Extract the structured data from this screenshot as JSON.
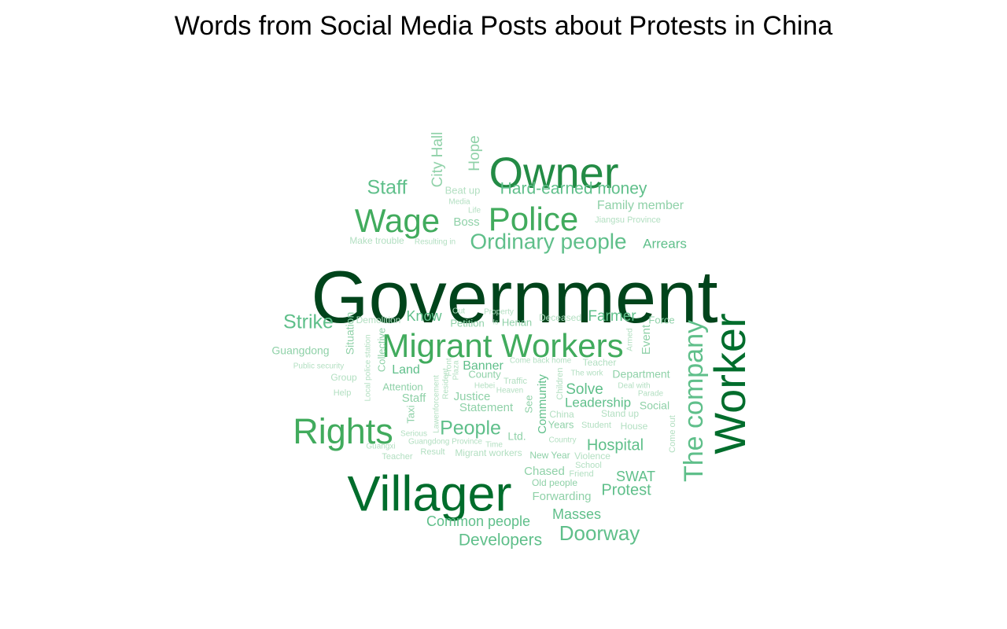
{
  "chart_data": {
    "type": "wordcloud",
    "title": "Words from Social Media Posts about Protests in China",
    "colors": {
      "darkest": "#00441b",
      "dark": "#006d2c",
      "mid_dark": "#238b45",
      "mid": "#41ab5d",
      "mid_light": "#5fbf8a",
      "light": "#8fd1a8",
      "lightest": "#b2dfc1"
    },
    "words": [
      {
        "text": "Government",
        "weight": 100,
        "color": "#00441b",
        "rotate": false
      },
      {
        "text": "Owner",
        "weight": 53,
        "color": "#238b45",
        "rotate": false
      },
      {
        "text": "Villager",
        "weight": 63,
        "color": "#006d2c",
        "rotate": false
      },
      {
        "text": "Worker",
        "weight": 52,
        "color": "#006d2c",
        "rotate": true
      },
      {
        "text": "Police",
        "weight": 42,
        "color": "#41ab5d",
        "rotate": false
      },
      {
        "text": "Migrant Workers",
        "weight": 40,
        "color": "#41ab5d",
        "rotate": false
      },
      {
        "text": "Rights",
        "weight": 45,
        "color": "#41ab5d",
        "rotate": false
      },
      {
        "text": "Wage",
        "weight": 40,
        "color": "#41ab5d",
        "rotate": false
      },
      {
        "text": "The company",
        "weight": 35,
        "color": "#5fbf8a",
        "rotate": true
      },
      {
        "text": "Ordinary people",
        "weight": 28,
        "color": "#5fbf8a",
        "rotate": false
      },
      {
        "text": "Hard-earned money",
        "weight": 22,
        "color": "#5fbf8a",
        "rotate": false
      },
      {
        "text": "Staff",
        "weight": 24,
        "color": "#5fbf8a",
        "rotate": false
      },
      {
        "text": "Doorway",
        "weight": 26,
        "color": "#5fbf8a",
        "rotate": false
      },
      {
        "text": "People",
        "weight": 24,
        "color": "#5fbf8a",
        "rotate": false
      },
      {
        "text": "Developers",
        "weight": 22,
        "color": "#5fbf8a",
        "rotate": false
      },
      {
        "text": "Strike",
        "weight": 24,
        "color": "#5fbf8a",
        "rotate": false
      },
      {
        "text": "Hospital",
        "weight": 20,
        "color": "#5fbf8a",
        "rotate": false
      },
      {
        "text": "Common people",
        "weight": 18,
        "color": "#5fbf8a",
        "rotate": false
      },
      {
        "text": "Protest",
        "weight": 20,
        "color": "#5fbf8a",
        "rotate": false
      },
      {
        "text": "Farmer",
        "weight": 19,
        "color": "#5fbf8a",
        "rotate": false
      },
      {
        "text": "Solve",
        "weight": 19,
        "color": "#5fbf8a",
        "rotate": false
      },
      {
        "text": "SWAT",
        "weight": 18,
        "color": "#5fbf8a",
        "rotate": false
      },
      {
        "text": "Masses",
        "weight": 18,
        "color": "#5fbf8a",
        "rotate": false
      },
      {
        "text": "Know",
        "weight": 18,
        "color": "#5fbf8a",
        "rotate": false
      },
      {
        "text": "Arrears",
        "weight": 17,
        "color": "#5fbf8a",
        "rotate": false
      },
      {
        "text": "Leadership",
        "weight": 17,
        "color": "#5fbf8a",
        "rotate": false
      },
      {
        "text": "Family member",
        "weight": 16,
        "color": "#8fd1a8",
        "rotate": false
      },
      {
        "text": "City Hall",
        "weight": 19,
        "color": "#8fd1a8",
        "rotate": true
      },
      {
        "text": "Hope",
        "weight": 19,
        "color": "#8fd1a8",
        "rotate": true
      },
      {
        "text": "Community",
        "weight": 15,
        "color": "#5fbf8a",
        "rotate": true
      },
      {
        "text": "Land",
        "weight": 16,
        "color": "#5fbf8a",
        "rotate": false
      },
      {
        "text": "Banner",
        "weight": 16,
        "color": "#5fbf8a",
        "rotate": false
      },
      {
        "text": "Statement",
        "weight": 15,
        "color": "#8fd1a8",
        "rotate": false
      },
      {
        "text": "Boss",
        "weight": 15,
        "color": "#8fd1a8",
        "rotate": false
      },
      {
        "text": "Staff",
        "weight": 15,
        "color": "#8fd1a8",
        "rotate": false
      },
      {
        "text": "Justice",
        "weight": 15,
        "color": "#8fd1a8",
        "rotate": false
      },
      {
        "text": "Guangdong",
        "weight": 14,
        "color": "#8fd1a8",
        "rotate": false
      },
      {
        "text": "Forwarding",
        "weight": 15,
        "color": "#8fd1a8",
        "rotate": false
      },
      {
        "text": "Chased",
        "weight": 15,
        "color": "#8fd1a8",
        "rotate": false
      },
      {
        "text": "Event",
        "weight": 15,
        "color": "#8fd1a8",
        "rotate": true
      },
      {
        "text": "Situation",
        "weight": 14,
        "color": "#8fd1a8",
        "rotate": true
      },
      {
        "text": "Social",
        "weight": 14,
        "color": "#8fd1a8",
        "rotate": false
      },
      {
        "text": "Department",
        "weight": 14,
        "color": "#8fd1a8",
        "rotate": false
      },
      {
        "text": "Ltd.",
        "weight": 14,
        "color": "#8fd1a8",
        "rotate": false
      },
      {
        "text": "Force",
        "weight": 13,
        "color": "#8fd1a8",
        "rotate": false
      },
      {
        "text": "Attention",
        "weight": 13,
        "color": "#8fd1a8",
        "rotate": false
      },
      {
        "text": "Years",
        "weight": 13,
        "color": "#8fd1a8",
        "rotate": false
      },
      {
        "text": "Taxi",
        "weight": 13,
        "color": "#8fd1a8",
        "rotate": true
      },
      {
        "text": "See",
        "weight": 13,
        "color": "#8fd1a8",
        "rotate": true
      },
      {
        "text": "Collective",
        "weight": 13,
        "color": "#8fd1a8",
        "rotate": true
      },
      {
        "text": "Petition",
        "weight": 13,
        "color": "#8fd1a8",
        "rotate": false
      },
      {
        "text": "County",
        "weight": 13,
        "color": "#8fd1a8",
        "rotate": false
      },
      {
        "text": "Henan",
        "weight": 13,
        "color": "#8fd1a8",
        "rotate": false
      },
      {
        "text": "New Year",
        "weight": 12,
        "color": "#8fd1a8",
        "rotate": false
      },
      {
        "text": "Old people",
        "weight": 12,
        "color": "#8fd1a8",
        "rotate": false
      },
      {
        "text": "Beat up",
        "weight": 13,
        "color": "#b2dfc1",
        "rotate": false
      },
      {
        "text": "Teacher",
        "weight": 12,
        "color": "#b2dfc1",
        "rotate": false
      },
      {
        "text": "Stand up",
        "weight": 12,
        "color": "#b2dfc1",
        "rotate": false
      },
      {
        "text": "House",
        "weight": 12,
        "color": "#b2dfc1",
        "rotate": false
      },
      {
        "text": "China",
        "weight": 12,
        "color": "#b2dfc1",
        "rotate": false
      },
      {
        "text": "Group",
        "weight": 12,
        "color": "#b2dfc1",
        "rotate": false
      },
      {
        "text": "Help",
        "weight": 11,
        "color": "#b2dfc1",
        "rotate": false
      },
      {
        "text": "Deceased",
        "weight": 12,
        "color": "#b2dfc1",
        "rotate": false
      },
      {
        "text": "Demolition",
        "weight": 12,
        "color": "#b2dfc1",
        "rotate": false
      },
      {
        "text": "Make trouble",
        "weight": 12,
        "color": "#b2dfc1",
        "rotate": false
      },
      {
        "text": "Migrant workers",
        "weight": 12,
        "color": "#b2dfc1",
        "rotate": false
      },
      {
        "text": "Violence",
        "weight": 12,
        "color": "#b2dfc1",
        "rotate": false
      },
      {
        "text": "Student",
        "weight": 11,
        "color": "#b2dfc1",
        "rotate": false
      },
      {
        "text": "Result",
        "weight": 11,
        "color": "#b2dfc1",
        "rotate": false
      },
      {
        "text": "Teacher",
        "weight": 11,
        "color": "#b2dfc1",
        "rotate": false
      },
      {
        "text": "Children",
        "weight": 11,
        "color": "#b2dfc1",
        "rotate": true
      },
      {
        "text": "Come out",
        "weight": 11,
        "color": "#b2dfc1",
        "rotate": true
      },
      {
        "text": "Friend",
        "weight": 11,
        "color": "#b2dfc1",
        "rotate": false
      },
      {
        "text": "School",
        "weight": 11,
        "color": "#b2dfc1",
        "rotate": false
      },
      {
        "text": "Jiangsu Province",
        "weight": 11,
        "color": "#b2dfc1",
        "rotate": false
      },
      {
        "text": "Traffic",
        "weight": 11,
        "color": "#b2dfc1",
        "rotate": false
      },
      {
        "text": "The work",
        "weight": 10,
        "color": "#b2dfc1",
        "rotate": false
      },
      {
        "text": "Deal with",
        "weight": 10,
        "color": "#b2dfc1",
        "rotate": false
      },
      {
        "text": "Parade",
        "weight": 10,
        "color": "#b2dfc1",
        "rotate": false
      },
      {
        "text": "Come back home",
        "weight": 10,
        "color": "#b2dfc1",
        "rotate": false
      },
      {
        "text": "Local police station",
        "weight": 10,
        "color": "#b2dfc1",
        "rotate": true
      },
      {
        "text": "Public security",
        "weight": 10,
        "color": "#b2dfc1",
        "rotate": false
      },
      {
        "text": "Serious",
        "weight": 10,
        "color": "#b2dfc1",
        "rotate": false
      },
      {
        "text": "Guangdong Province",
        "weight": 10,
        "color": "#b2dfc1",
        "rotate": false
      },
      {
        "text": "Time",
        "weight": 10,
        "color": "#b2dfc1",
        "rotate": false
      },
      {
        "text": "Country",
        "weight": 10,
        "color": "#b2dfc1",
        "rotate": false
      },
      {
        "text": "Guangxi",
        "weight": 10,
        "color": "#b2dfc1",
        "rotate": false
      },
      {
        "text": "Media",
        "weight": 10,
        "color": "#b2dfc1",
        "rotate": false
      },
      {
        "text": "Life",
        "weight": 10,
        "color": "#b2dfc1",
        "rotate": false
      },
      {
        "text": "Resulting in",
        "weight": 10,
        "color": "#b2dfc1",
        "rotate": false
      },
      {
        "text": "Out",
        "weight": 10,
        "color": "#b2dfc1",
        "rotate": false
      },
      {
        "text": "Property",
        "weight": 10,
        "color": "#b2dfc1",
        "rotate": false
      },
      {
        "text": "Is",
        "weight": 9,
        "color": "#b2dfc1",
        "rotate": false
      },
      {
        "text": "Hebei",
        "weight": 10,
        "color": "#b2dfc1",
        "rotate": false
      },
      {
        "text": "Heaven",
        "weight": 10,
        "color": "#b2dfc1",
        "rotate": false
      },
      {
        "text": "Armed",
        "weight": 10,
        "color": "#b2dfc1",
        "rotate": true
      },
      {
        "text": "Lawenforcement",
        "weight": 10,
        "color": "#b2dfc1",
        "rotate": true
      },
      {
        "text": "Resident",
        "weight": 10,
        "color": "#b2dfc1",
        "rotate": true
      },
      {
        "text": "Front",
        "weight": 10,
        "color": "#b2dfc1",
        "rotate": true
      },
      {
        "text": "Plaza",
        "weight": 10,
        "color": "#b2dfc1",
        "rotate": true
      }
    ]
  }
}
